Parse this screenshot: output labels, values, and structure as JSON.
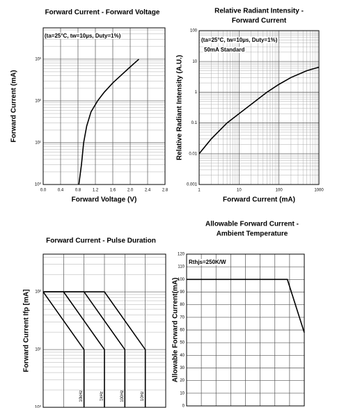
{
  "chart_data": [
    {
      "type": "line",
      "title": [
        "Forward Current - Forward Voltage"
      ],
      "x_label": "Forward Voltage (V)",
      "y_label": "Forward Current (mA)",
      "annotations": [
        "(ta=25°C, tw=10µs, Duty=1%)"
      ],
      "x_log": false,
      "y_log": true,
      "grid": true,
      "show_xtick_labels": true,
      "xlim": [
        0,
        2.8
      ],
      "xticks": [
        {
          "value": 0,
          "label": "0.0"
        },
        0.4,
        0.8,
        1.2,
        1.6,
        {
          "value": 2,
          "label": "2.0"
        },
        2.4,
        2.8
      ],
      "ylim": [
        1,
        5600
      ],
      "yticks": [
        {
          "value": 1,
          "label": "10⁰"
        },
        {
          "value": 10,
          "label": "10¹"
        },
        {
          "value": 100,
          "label": "10²"
        },
        {
          "value": 1000,
          "label": "10³"
        }
      ],
      "series": [
        {
          "color": "#000000",
          "x": [
            0.82,
            0.88,
            0.93,
            1.0,
            1.1,
            1.25,
            1.4,
            1.6,
            1.8,
            2.0,
            2.2
          ],
          "values": [
            1,
            3,
            10,
            25,
            55,
            100,
            160,
            270,
            420,
            650,
            1000
          ]
        }
      ]
    },
    {
      "type": "line",
      "title": [
        "Relative Radiant Intensity -",
        "Forward Current"
      ],
      "x_label": "Forward Current (mA)",
      "y_label": "Relative Radiant Intensity (A.U.)",
      "annotations": [
        "(ta=25°C, tw=10µs, Duty=1%)",
        "50mA Standard"
      ],
      "x_log": true,
      "y_log": true,
      "grid": true,
      "show_xtick_labels": true,
      "xlim": [
        1,
        1000
      ],
      "xticks": [
        1,
        10,
        100,
        1000
      ],
      "ylim": [
        0.001,
        100
      ],
      "yticks": [
        0.001,
        0.01,
        0.1,
        1,
        10,
        100
      ],
      "series": [
        {
          "color": "#000000",
          "x": [
            1,
            2,
            5,
            10,
            20,
            50,
            100,
            200,
            500,
            1000
          ],
          "values": [
            0.01,
            0.03,
            0.1,
            0.2,
            0.4,
            1,
            1.8,
            3,
            5,
            6.5
          ]
        }
      ]
    },
    {
      "type": "line",
      "title": [
        "Forward Current - Pulse Duration"
      ],
      "y_label": "Forward Current Ifp [mA]",
      "annotations": [],
      "x_log": false,
      "y_log": true,
      "grid": true,
      "show_xtick_labels": false,
      "xlim": [
        0,
        6
      ],
      "xticks": [
        0,
        1,
        2,
        3,
        4,
        5,
        6
      ],
      "ylim": [
        1,
        450
      ],
      "yticks": [
        {
          "value": 1,
          "label": "10⁰"
        },
        {
          "value": 10,
          "label": "10¹"
        },
        {
          "value": 100,
          "label": "10²"
        }
      ],
      "series": [
        {
          "name": "10kHz",
          "color": "#000000",
          "x": [
            0,
            0,
            2,
            2
          ],
          "values": [
            100,
            100,
            10,
            1
          ]
        },
        {
          "name": "1kHz",
          "color": "#000000",
          "x": [
            0,
            1,
            3,
            3
          ],
          "values": [
            100,
            100,
            10,
            1
          ]
        },
        {
          "name": "100Hz",
          "color": "#000000",
          "x": [
            0,
            2,
            4,
            4
          ],
          "values": [
            100,
            100,
            10,
            1
          ]
        },
        {
          "name": "10Hz",
          "color": "#000000",
          "x": [
            0,
            3,
            5,
            5
          ],
          "values": [
            100,
            100,
            10,
            1
          ]
        }
      ]
    },
    {
      "type": "line",
      "title": [
        "Allowable Forward Current -",
        "Ambient Temperature"
      ],
      "y_label": "Allowable Forward Current(mA)",
      "annotations": [
        "Rthjs=250K/W"
      ],
      "x_log": false,
      "y_log": false,
      "grid": true,
      "show_xtick_labels": false,
      "xlim": [
        -40,
        120
      ],
      "xticks": [
        -40,
        -20,
        0,
        20,
        40,
        60,
        80,
        100,
        120
      ],
      "ylim": [
        0,
        120
      ],
      "yticks": [
        0,
        10,
        20,
        30,
        40,
        50,
        60,
        70,
        80,
        90,
        100,
        110,
        120
      ],
      "series": [
        {
          "color": "#000000",
          "x": [
            -40,
            97,
            120
          ],
          "values": [
            100,
            100,
            58
          ]
        }
      ]
    }
  ]
}
